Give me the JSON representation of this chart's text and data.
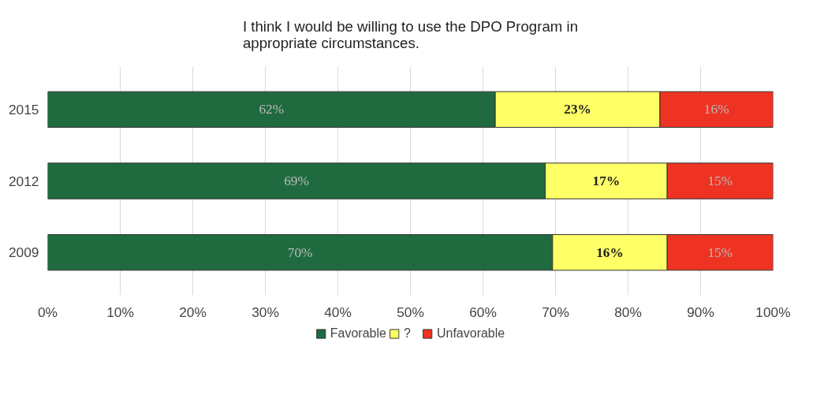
{
  "chart_data": {
    "type": "bar",
    "orientation": "horizontal",
    "stacked": true,
    "title": "I think I would be willing to use the DPO Program in appropriate circumstances.",
    "categories": [
      "2015",
      "2012",
      "2009"
    ],
    "series": [
      {
        "name": "Favorable",
        "color": "#1f6b3f",
        "values": [
          61.7,
          68.6,
          69.6
        ],
        "value_labels": [
          "62%",
          "69%",
          "70%"
        ]
      },
      {
        "name": "?",
        "color": "#ffff66",
        "values": [
          22.7,
          16.8,
          15.8
        ],
        "value_labels": [
          "23%",
          "17%",
          "16%"
        ]
      },
      {
        "name": "Unfavorable",
        "color": "#ee3322",
        "values": [
          15.6,
          14.6,
          14.6
        ],
        "value_labels": [
          "16%",
          "15%",
          "15%"
        ]
      }
    ],
    "xlim": [
      0,
      100
    ],
    "xticks": [
      {
        "value": 0,
        "label": "0%"
      },
      {
        "value": 10,
        "label": "10%"
      },
      {
        "value": 20,
        "label": "20%"
      },
      {
        "value": 30,
        "label": "30%"
      },
      {
        "value": 40,
        "label": "40%"
      },
      {
        "value": 50,
        "label": "50%"
      },
      {
        "value": 60,
        "label": "60%"
      },
      {
        "value": 70,
        "label": "70%"
      },
      {
        "value": 80,
        "label": "80%"
      },
      {
        "value": 90,
        "label": "90%"
      },
      {
        "value": 100,
        "label": "100%"
      }
    ],
    "grid": "x",
    "legend": "bottom"
  }
}
